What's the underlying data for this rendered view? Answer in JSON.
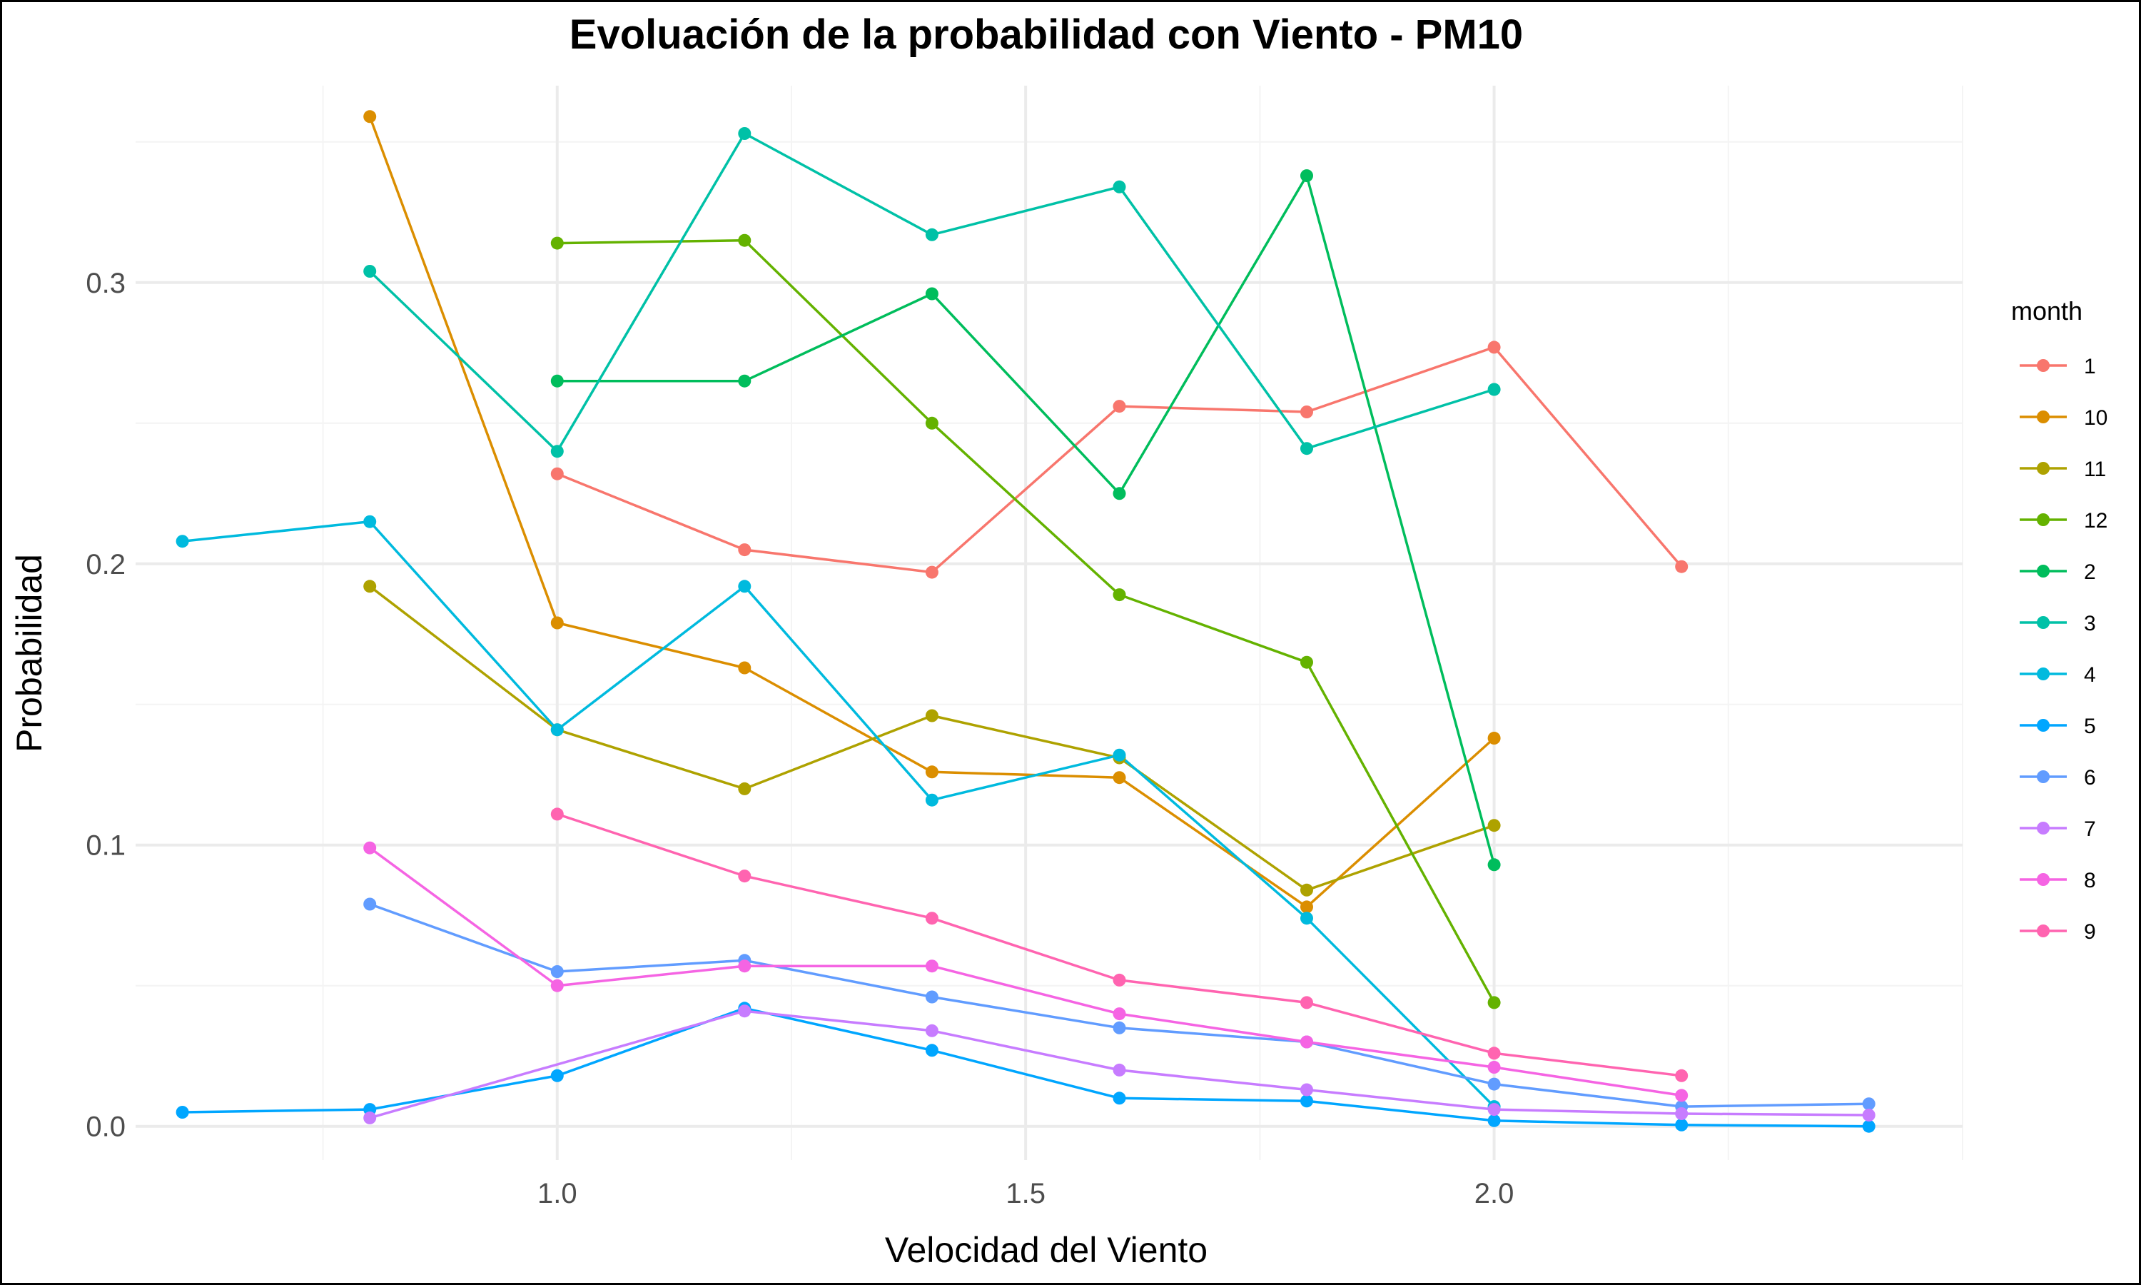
{
  "chart_data": {
    "type": "line",
    "title": "Evoluación de la probabilidad con Viento - PM10",
    "xlabel": "Velocidad del Viento",
    "ylabel": "Probabilidad",
    "xlim": [
      0.55,
      2.5
    ],
    "ylim": [
      -0.012,
      0.37
    ],
    "x_ticks": [
      1.0,
      1.5,
      2.0
    ],
    "x_tick_labels": [
      "1.0",
      "1.5",
      "2.0"
    ],
    "y_ticks": [
      0.0,
      0.1,
      0.2,
      0.3
    ],
    "y_tick_labels": [
      "0.0",
      "0.1",
      "0.2",
      "0.3"
    ],
    "grid": true,
    "legend_title": "month",
    "legend_position": "right",
    "series": [
      {
        "name": "1",
        "color": "#F8766D",
        "points": [
          [
            1.0,
            0.232
          ],
          [
            1.2,
            0.205
          ],
          [
            1.4,
            0.197
          ],
          [
            1.6,
            0.256
          ],
          [
            1.8,
            0.254
          ],
          [
            2.0,
            0.277
          ],
          [
            2.2,
            0.199
          ]
        ]
      },
      {
        "name": "10",
        "color": "#DB8E00",
        "points": [
          [
            0.8,
            0.359
          ],
          [
            1.0,
            0.179
          ],
          [
            1.2,
            0.163
          ],
          [
            1.4,
            0.126
          ],
          [
            1.6,
            0.124
          ],
          [
            1.8,
            0.078
          ],
          [
            2.0,
            0.138
          ]
        ]
      },
      {
        "name": "11",
        "color": "#AEA200",
        "points": [
          [
            0.8,
            0.192
          ],
          [
            1.0,
            0.141
          ],
          [
            1.2,
            0.12
          ],
          [
            1.4,
            0.146
          ],
          [
            1.6,
            0.131
          ],
          [
            1.8,
            0.084
          ],
          [
            2.0,
            0.107
          ]
        ]
      },
      {
        "name": "12",
        "color": "#64B200",
        "points": [
          [
            1.0,
            0.314
          ],
          [
            1.2,
            0.315
          ],
          [
            1.4,
            0.25
          ],
          [
            1.6,
            0.189
          ],
          [
            1.8,
            0.165
          ],
          [
            2.0,
            0.044
          ]
        ]
      },
      {
        "name": "2",
        "color": "#00BD5C",
        "points": [
          [
            1.0,
            0.265
          ],
          [
            1.2,
            0.265
          ],
          [
            1.4,
            0.296
          ],
          [
            1.6,
            0.225
          ],
          [
            1.8,
            0.338
          ],
          [
            2.0,
            0.093
          ]
        ]
      },
      {
        "name": "3",
        "color": "#00C1A7",
        "points": [
          [
            0.8,
            0.304
          ],
          [
            1.0,
            0.24
          ],
          [
            1.2,
            0.353
          ],
          [
            1.4,
            0.317
          ],
          [
            1.6,
            0.334
          ],
          [
            1.8,
            0.241
          ],
          [
            2.0,
            0.262
          ]
        ]
      },
      {
        "name": "4",
        "color": "#00BADE",
        "points": [
          [
            0.6,
            0.208
          ],
          [
            0.8,
            0.215
          ],
          [
            1.0,
            0.141
          ],
          [
            1.2,
            0.192
          ],
          [
            1.4,
            0.116
          ],
          [
            1.6,
            0.132
          ],
          [
            1.8,
            0.074
          ],
          [
            2.0,
            0.007
          ]
        ]
      },
      {
        "name": "5",
        "color": "#00A6FF",
        "points": [
          [
            0.6,
            0.005
          ],
          [
            0.8,
            0.006
          ],
          [
            1.0,
            0.018
          ],
          [
            1.2,
            0.042
          ],
          [
            1.4,
            0.027
          ],
          [
            1.6,
            0.01
          ],
          [
            1.8,
            0.009
          ],
          [
            2.0,
            0.002
          ],
          [
            2.2,
            0.0005
          ],
          [
            2.4,
            0.0
          ]
        ]
      },
      {
        "name": "6",
        "color": "#619CFF",
        "points": [
          [
            0.8,
            0.079
          ],
          [
            1.0,
            0.055
          ],
          [
            1.2,
            0.059
          ],
          [
            1.4,
            0.046
          ],
          [
            1.6,
            0.035
          ],
          [
            1.8,
            0.03
          ],
          [
            2.0,
            0.015
          ],
          [
            2.2,
            0.007
          ],
          [
            2.4,
            0.008
          ]
        ]
      },
      {
        "name": "7",
        "color": "#C77CFF",
        "points": [
          [
            0.8,
            0.003
          ],
          [
            1.2,
            0.041
          ],
          [
            1.4,
            0.034
          ],
          [
            1.6,
            0.02
          ],
          [
            1.8,
            0.013
          ],
          [
            2.0,
            0.006
          ],
          [
            2.2,
            0.0045
          ],
          [
            2.4,
            0.004
          ]
        ]
      },
      {
        "name": "8",
        "color": "#F564E3",
        "points": [
          [
            0.8,
            0.099
          ],
          [
            1.0,
            0.05
          ],
          [
            1.2,
            0.057
          ],
          [
            1.4,
            0.057
          ],
          [
            1.6,
            0.04
          ],
          [
            1.8,
            0.03
          ],
          [
            2.0,
            0.021
          ],
          [
            2.2,
            0.011
          ]
        ]
      },
      {
        "name": "9",
        "color": "#FF64B0",
        "points": [
          [
            1.0,
            0.111
          ],
          [
            1.2,
            0.089
          ],
          [
            1.4,
            0.074
          ],
          [
            1.6,
            0.052
          ],
          [
            1.8,
            0.044
          ],
          [
            2.0,
            0.026
          ],
          [
            2.2,
            0.018
          ]
        ]
      }
    ]
  }
}
